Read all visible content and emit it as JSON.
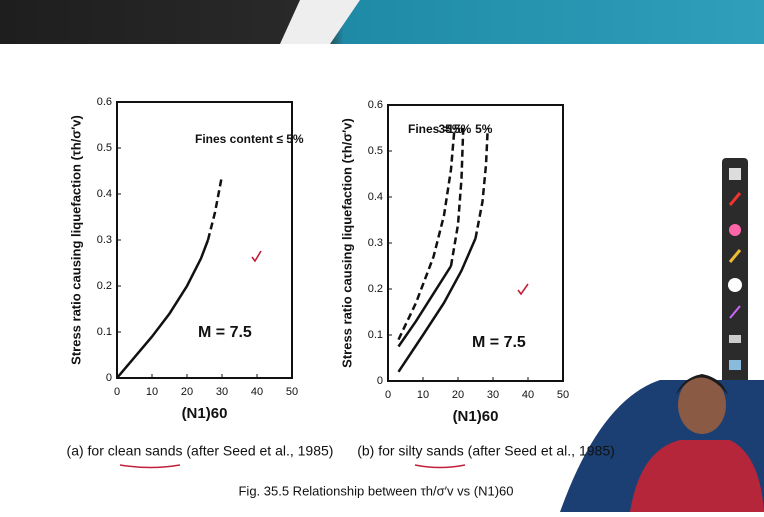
{
  "chart_data": [
    {
      "type": "line",
      "y_label": "Stress ratio causing liquefaction (τh/σ′v)",
      "x_label": "(N1)60",
      "annotations": [
        "Fines content ≤ 5%",
        "M = 7.5"
      ],
      "xlim": [
        0,
        50
      ],
      "xticks": [
        0,
        10,
        20,
        30,
        40,
        50
      ],
      "ylim": [
        0,
        0.6
      ],
      "yticks": [
        0,
        0.1,
        0.2,
        0.3,
        0.4,
        0.5,
        0.6
      ],
      "series": [
        {
          "style": "solid",
          "color": "#111111",
          "x": [
            0,
            5,
            10,
            15,
            20,
            24,
            26
          ],
          "values": [
            0,
            0.045,
            0.09,
            0.14,
            0.2,
            0.26,
            0.3
          ]
        },
        {
          "style": "dashed",
          "color": "#111111",
          "x": [
            26,
            28,
            29,
            30
          ],
          "values": [
            0.3,
            0.36,
            0.4,
            0.44
          ]
        }
      ]
    },
    {
      "type": "line",
      "y_label": "Stress ratio causing liquefaction (τh/σ′v)",
      "x_label": "(N1)60",
      "annotations": [
        "Fines =",
        "M = 7.5"
      ],
      "xlim": [
        0,
        50
      ],
      "xticks": [
        0,
        10,
        20,
        30,
        40,
        50
      ],
      "ylim": [
        0,
        0.6
      ],
      "yticks": [
        0,
        0.1,
        0.2,
        0.3,
        0.4,
        0.5,
        0.6
      ],
      "series": [
        {
          "name": "35%",
          "style": "dashed",
          "color": "#111111",
          "x": [
            3,
            8,
            13,
            16,
            18,
            19
          ],
          "values": [
            0.09,
            0.17,
            0.27,
            0.36,
            0.46,
            0.55
          ]
        },
        {
          "style": "solid",
          "color": "#111111",
          "x": [
            3,
            8,
            13,
            18
          ],
          "values": [
            0.075,
            0.13,
            0.19,
            0.25
          ]
        },
        {
          "name": "15%",
          "style": "dashed",
          "color": "#111111",
          "x": [
            18,
            20,
            21,
            21.5
          ],
          "values": [
            0.25,
            0.34,
            0.44,
            0.55
          ]
        },
        {
          "style": "solid",
          "color": "#111111",
          "x": [
            3,
            10,
            16,
            21,
            25
          ],
          "values": [
            0.02,
            0.1,
            0.17,
            0.24,
            0.31
          ]
        },
        {
          "name": "5%",
          "style": "dashed",
          "color": "#111111",
          "x": [
            25,
            27,
            28,
            28.5
          ],
          "values": [
            0.31,
            0.39,
            0.47,
            0.55
          ]
        }
      ]
    }
  ],
  "captions": [
    "(a) for clean sands (after Seed et al., 1985)",
    "(b) for silty sands (after Seed et al., 1985)"
  ],
  "figure_caption": "Fig. 35.5 Relationship between τh/σ′v vs (N1)60"
}
